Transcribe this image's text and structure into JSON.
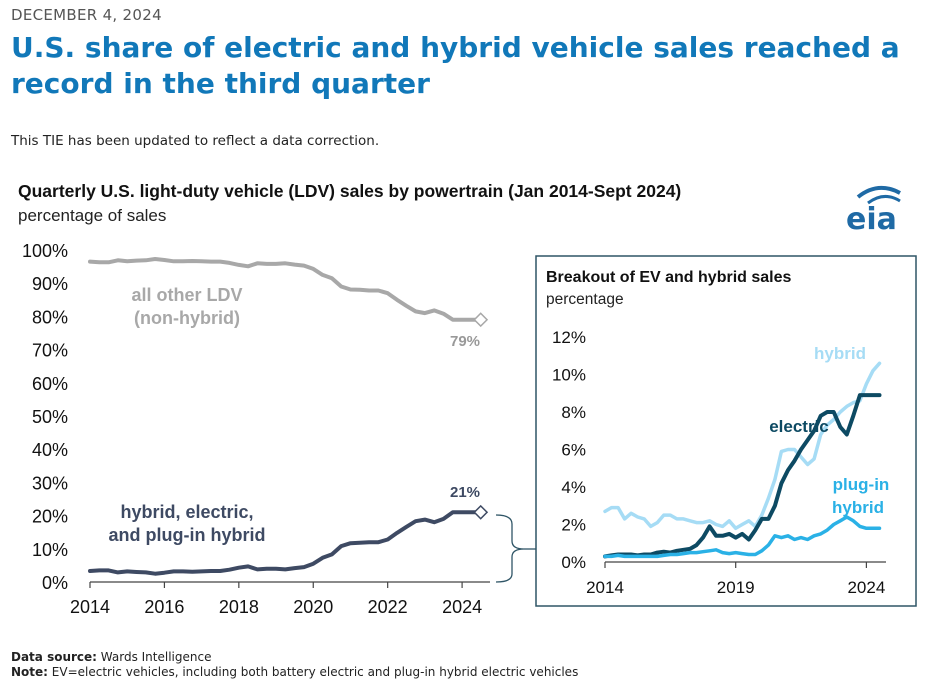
{
  "page": {
    "date": "DECEMBER 4, 2024",
    "headline": "U.S. share of electric and hybrid vehicle sales reached a record in the third quarter",
    "correction_note": "This TIE has been updated to reflect a data correction.",
    "logo_text": "eia",
    "source_label": "Data source:",
    "source_text": " Wards Intelligence",
    "note_label": "Note:",
    "note_text": " EV=electric vehicles, including both battery electric and plug-in hybrid electric vehicles"
  },
  "colors": {
    "headline": "#1178b9",
    "other_ldv": "#a8a8a8",
    "hybrid_combined": "#3e4a63",
    "electric": "#0d4a63",
    "hybrid": "#a6dcf5",
    "plugin_hybrid": "#2ab1e6",
    "inset_border": "#2f5566",
    "logo": "#1f6aa5"
  },
  "chart_data": [
    {
      "type": "line",
      "title": "Quarterly U.S. light-duty vehicle (LDV) sales by powertrain (Jan 2014-Sept 2024)",
      "subtitle": "percentage of sales",
      "xlabel": "",
      "ylabel": "",
      "xlim": [
        2014,
        2024.75
      ],
      "ylim": [
        0,
        100
      ],
      "xticks": [
        "2014",
        "2016",
        "2018",
        "2020",
        "2022",
        "2024"
      ],
      "yticks": [
        "0%",
        "10%",
        "20%",
        "30%",
        "40%",
        "50%",
        "60%",
        "70%",
        "80%",
        "90%",
        "100%"
      ],
      "grid": false,
      "series": [
        {
          "name": "all other LDV",
          "name_line2": "(non-hybrid)",
          "end_label": "79%",
          "x": [
            2014.0,
            2014.25,
            2014.5,
            2014.75,
            2015.0,
            2015.25,
            2015.5,
            2015.75,
            2016.0,
            2016.25,
            2016.5,
            2016.75,
            2017.0,
            2017.25,
            2017.5,
            2017.75,
            2018.0,
            2018.25,
            2018.5,
            2018.75,
            2019.0,
            2019.25,
            2019.5,
            2019.75,
            2020.0,
            2020.25,
            2020.5,
            2020.75,
            2021.0,
            2021.25,
            2021.5,
            2021.75,
            2022.0,
            2022.25,
            2022.5,
            2022.75,
            2023.0,
            2023.25,
            2023.5,
            2023.75,
            2024.0,
            2024.25,
            2024.5
          ],
          "values": [
            96.5,
            96.3,
            96.3,
            96.9,
            96.6,
            96.8,
            96.9,
            97.3,
            97.0,
            96.6,
            96.6,
            96.7,
            96.6,
            96.5,
            96.5,
            96.1,
            95.5,
            95.1,
            96.0,
            95.8,
            95.8,
            96.0,
            95.6,
            95.3,
            94.3,
            92.5,
            91.5,
            89.0,
            88.1,
            88.0,
            87.8,
            87.8,
            87.0,
            85.0,
            83.2,
            81.5,
            81.0,
            81.8,
            80.8,
            79.0,
            79.0,
            79.0,
            79.0
          ]
        },
        {
          "name": "hybrid, electric,",
          "name_line2": "and plug-in hybrid",
          "end_label": "21%",
          "x": [
            2014.0,
            2014.25,
            2014.5,
            2014.75,
            2015.0,
            2015.25,
            2015.5,
            2015.75,
            2016.0,
            2016.25,
            2016.5,
            2016.75,
            2017.0,
            2017.25,
            2017.5,
            2017.75,
            2018.0,
            2018.25,
            2018.5,
            2018.75,
            2019.0,
            2019.25,
            2019.5,
            2019.75,
            2020.0,
            2020.25,
            2020.5,
            2020.75,
            2021.0,
            2021.25,
            2021.5,
            2021.75,
            2022.0,
            2022.25,
            2022.5,
            2022.75,
            2023.0,
            2023.25,
            2023.5,
            2023.75,
            2024.0,
            2024.25,
            2024.5
          ],
          "values": [
            3.3,
            3.5,
            3.5,
            2.9,
            3.2,
            3.0,
            2.9,
            2.5,
            2.8,
            3.2,
            3.2,
            3.1,
            3.2,
            3.3,
            3.3,
            3.7,
            4.3,
            4.7,
            3.8,
            4.0,
            4.0,
            3.8,
            4.2,
            4.5,
            5.5,
            7.3,
            8.3,
            10.8,
            11.7,
            11.8,
            12.0,
            12.0,
            12.8,
            14.8,
            16.6,
            18.3,
            18.8,
            18.0,
            19.0,
            21.0,
            21.0,
            21.0,
            21.0
          ]
        }
      ]
    },
    {
      "type": "line",
      "title": "Breakout of EV and hybrid sales",
      "subtitle": "percentage",
      "xlabel": "",
      "ylabel": "",
      "xlim": [
        2014,
        2024.75
      ],
      "ylim": [
        0,
        12
      ],
      "xticks": [
        "2014",
        "2019",
        "2024"
      ],
      "yticks": [
        "0%",
        "2%",
        "4%",
        "6%",
        "8%",
        "10%",
        "12%"
      ],
      "grid": false,
      "series": [
        {
          "name": "hybrid",
          "x": [
            2014.0,
            2014.25,
            2014.5,
            2014.75,
            2015.0,
            2015.25,
            2015.5,
            2015.75,
            2016.0,
            2016.25,
            2016.5,
            2016.75,
            2017.0,
            2017.25,
            2017.5,
            2017.75,
            2018.0,
            2018.25,
            2018.5,
            2018.75,
            2019.0,
            2019.25,
            2019.5,
            2019.75,
            2020.0,
            2020.25,
            2020.5,
            2020.75,
            2021.0,
            2021.25,
            2021.5,
            2021.75,
            2022.0,
            2022.25,
            2022.5,
            2022.75,
            2023.0,
            2023.25,
            2023.5,
            2023.75,
            2024.0,
            2024.25,
            2024.5
          ],
          "values": [
            2.7,
            2.9,
            2.9,
            2.3,
            2.6,
            2.4,
            2.3,
            1.9,
            2.1,
            2.5,
            2.5,
            2.3,
            2.3,
            2.2,
            2.1,
            2.1,
            2.2,
            2.0,
            1.9,
            2.2,
            1.8,
            2.0,
            2.2,
            1.9,
            2.5,
            3.4,
            4.4,
            5.9,
            6.0,
            6.0,
            5.6,
            5.2,
            5.5,
            6.8,
            7.3,
            7.6,
            8.0,
            8.3,
            8.5,
            8.6,
            9.5,
            10.2,
            10.6
          ]
        },
        {
          "name": "electric",
          "x": [
            2014.0,
            2014.25,
            2014.5,
            2014.75,
            2015.0,
            2015.25,
            2015.5,
            2015.75,
            2016.0,
            2016.25,
            2016.5,
            2016.75,
            2017.0,
            2017.25,
            2017.5,
            2017.75,
            2018.0,
            2018.25,
            2018.5,
            2018.75,
            2019.0,
            2019.25,
            2019.5,
            2019.75,
            2020.0,
            2020.25,
            2020.5,
            2020.75,
            2021.0,
            2021.25,
            2021.5,
            2021.75,
            2022.0,
            2022.25,
            2022.5,
            2022.75,
            2023.0,
            2023.25,
            2023.5,
            2023.75,
            2024.0,
            2024.25,
            2024.5
          ],
          "values": [
            0.3,
            0.35,
            0.4,
            0.4,
            0.4,
            0.35,
            0.4,
            0.4,
            0.5,
            0.55,
            0.5,
            0.6,
            0.65,
            0.7,
            0.9,
            1.3,
            1.9,
            1.4,
            1.4,
            1.5,
            1.3,
            1.5,
            1.2,
            1.7,
            2.3,
            2.3,
            3.0,
            4.2,
            4.9,
            5.4,
            6.0,
            6.5,
            7.0,
            7.8,
            8.0,
            8.0,
            7.2,
            6.8,
            7.8,
            8.9,
            8.9,
            8.9,
            8.9
          ]
        },
        {
          "name": "plug-in",
          "name_line2": "hybrid",
          "x": [
            2014.0,
            2014.25,
            2014.5,
            2014.75,
            2015.0,
            2015.25,
            2015.5,
            2015.75,
            2016.0,
            2016.25,
            2016.5,
            2016.75,
            2017.0,
            2017.25,
            2017.5,
            2017.75,
            2018.0,
            2018.25,
            2018.5,
            2018.75,
            2019.0,
            2019.25,
            2019.5,
            2019.75,
            2020.0,
            2020.25,
            2020.5,
            2020.75,
            2021.0,
            2021.25,
            2021.5,
            2021.75,
            2022.0,
            2022.25,
            2022.5,
            2022.75,
            2023.0,
            2023.25,
            2023.5,
            2023.75,
            2024.0,
            2024.25,
            2024.5
          ],
          "values": [
            0.3,
            0.3,
            0.35,
            0.3,
            0.3,
            0.3,
            0.3,
            0.3,
            0.3,
            0.35,
            0.4,
            0.4,
            0.45,
            0.5,
            0.5,
            0.55,
            0.6,
            0.65,
            0.5,
            0.45,
            0.5,
            0.45,
            0.4,
            0.4,
            0.6,
            0.9,
            1.4,
            1.3,
            1.4,
            1.2,
            1.3,
            1.2,
            1.4,
            1.5,
            1.7,
            2.0,
            2.2,
            2.4,
            2.2,
            1.9,
            1.8,
            1.8,
            1.8
          ]
        }
      ]
    }
  ]
}
